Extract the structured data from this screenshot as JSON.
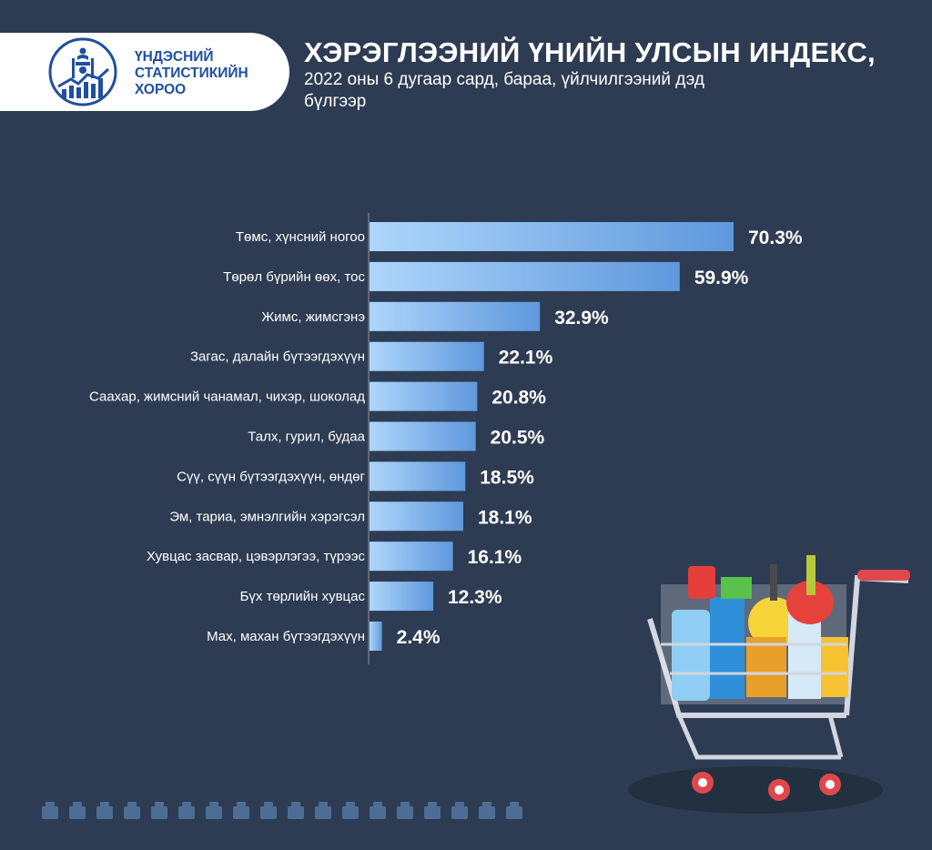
{
  "header": {
    "org_line1": "ҮНДЭСНИЙ",
    "org_line2": "СТАТИСТИКИЙН",
    "org_line3": "ХОРОО",
    "title": "ХЭРЭГЛЭЭНИЙ ҮНИЙН УЛСЫН ИНДЕКС,",
    "subtitle": "2022 оны 6 дугаар сард, бараа, үйлчилгээний дэд бүлгээр"
  },
  "colors": {
    "background": "#2d3c52",
    "bar_light": "#aed6fb",
    "bar_dark": "#5f98dc",
    "brand_blue": "#1f4fa0",
    "text": "#ffffff"
  },
  "chart_data": {
    "type": "bar",
    "orientation": "horizontal",
    "categories": [
      "Төмс, хүнсний ногоо",
      "Төрөл бүрийн өөх, тос",
      "Жимс, жимсгэнэ",
      "Загас, далайн бүтээгдэхүүн",
      "Саахар, жимсний чанамал, чихэр, шоколад",
      "Талх, гурил, будаа",
      "Сүү, сүүн бүтээгдэхүүн, өндөг",
      "Эм, тариа, эмнэлгийн хэрэгсэл",
      "Хувцас засвар, цэвэрлэгээ, түрээс",
      "Бүх төрлийн хувцас",
      "Мах, махан бүтээгдэхүүн"
    ],
    "values": [
      70.3,
      59.9,
      32.9,
      22.1,
      20.8,
      20.5,
      18.5,
      18.1,
      16.1,
      12.3,
      2.4
    ],
    "value_labels": [
      "70.3%",
      "59.9%",
      "32.9%",
      "22.1%",
      "20.8%",
      "20.5%",
      "18.5%",
      "18.1%",
      "16.1%",
      "12.3%",
      "2.4%"
    ],
    "unit": "%",
    "xlim": [
      0,
      70.3
    ],
    "grid": false,
    "legend": "none"
  },
  "decor": {
    "cart_icon": "shopping-cart-icon",
    "strip_icons": [
      "store-icon",
      "scale-icon",
      "bus-icon",
      "building-icon",
      "cart-icon",
      "shop-icon",
      "document-icon",
      "basket-icon",
      "bread-icon",
      "bottle-icon",
      "washer-icon",
      "box-icon",
      "medicine-icon",
      "tv-icon",
      "cart-icon",
      "factory-icon",
      "carrot-icon",
      "chemistry-icon"
    ]
  }
}
